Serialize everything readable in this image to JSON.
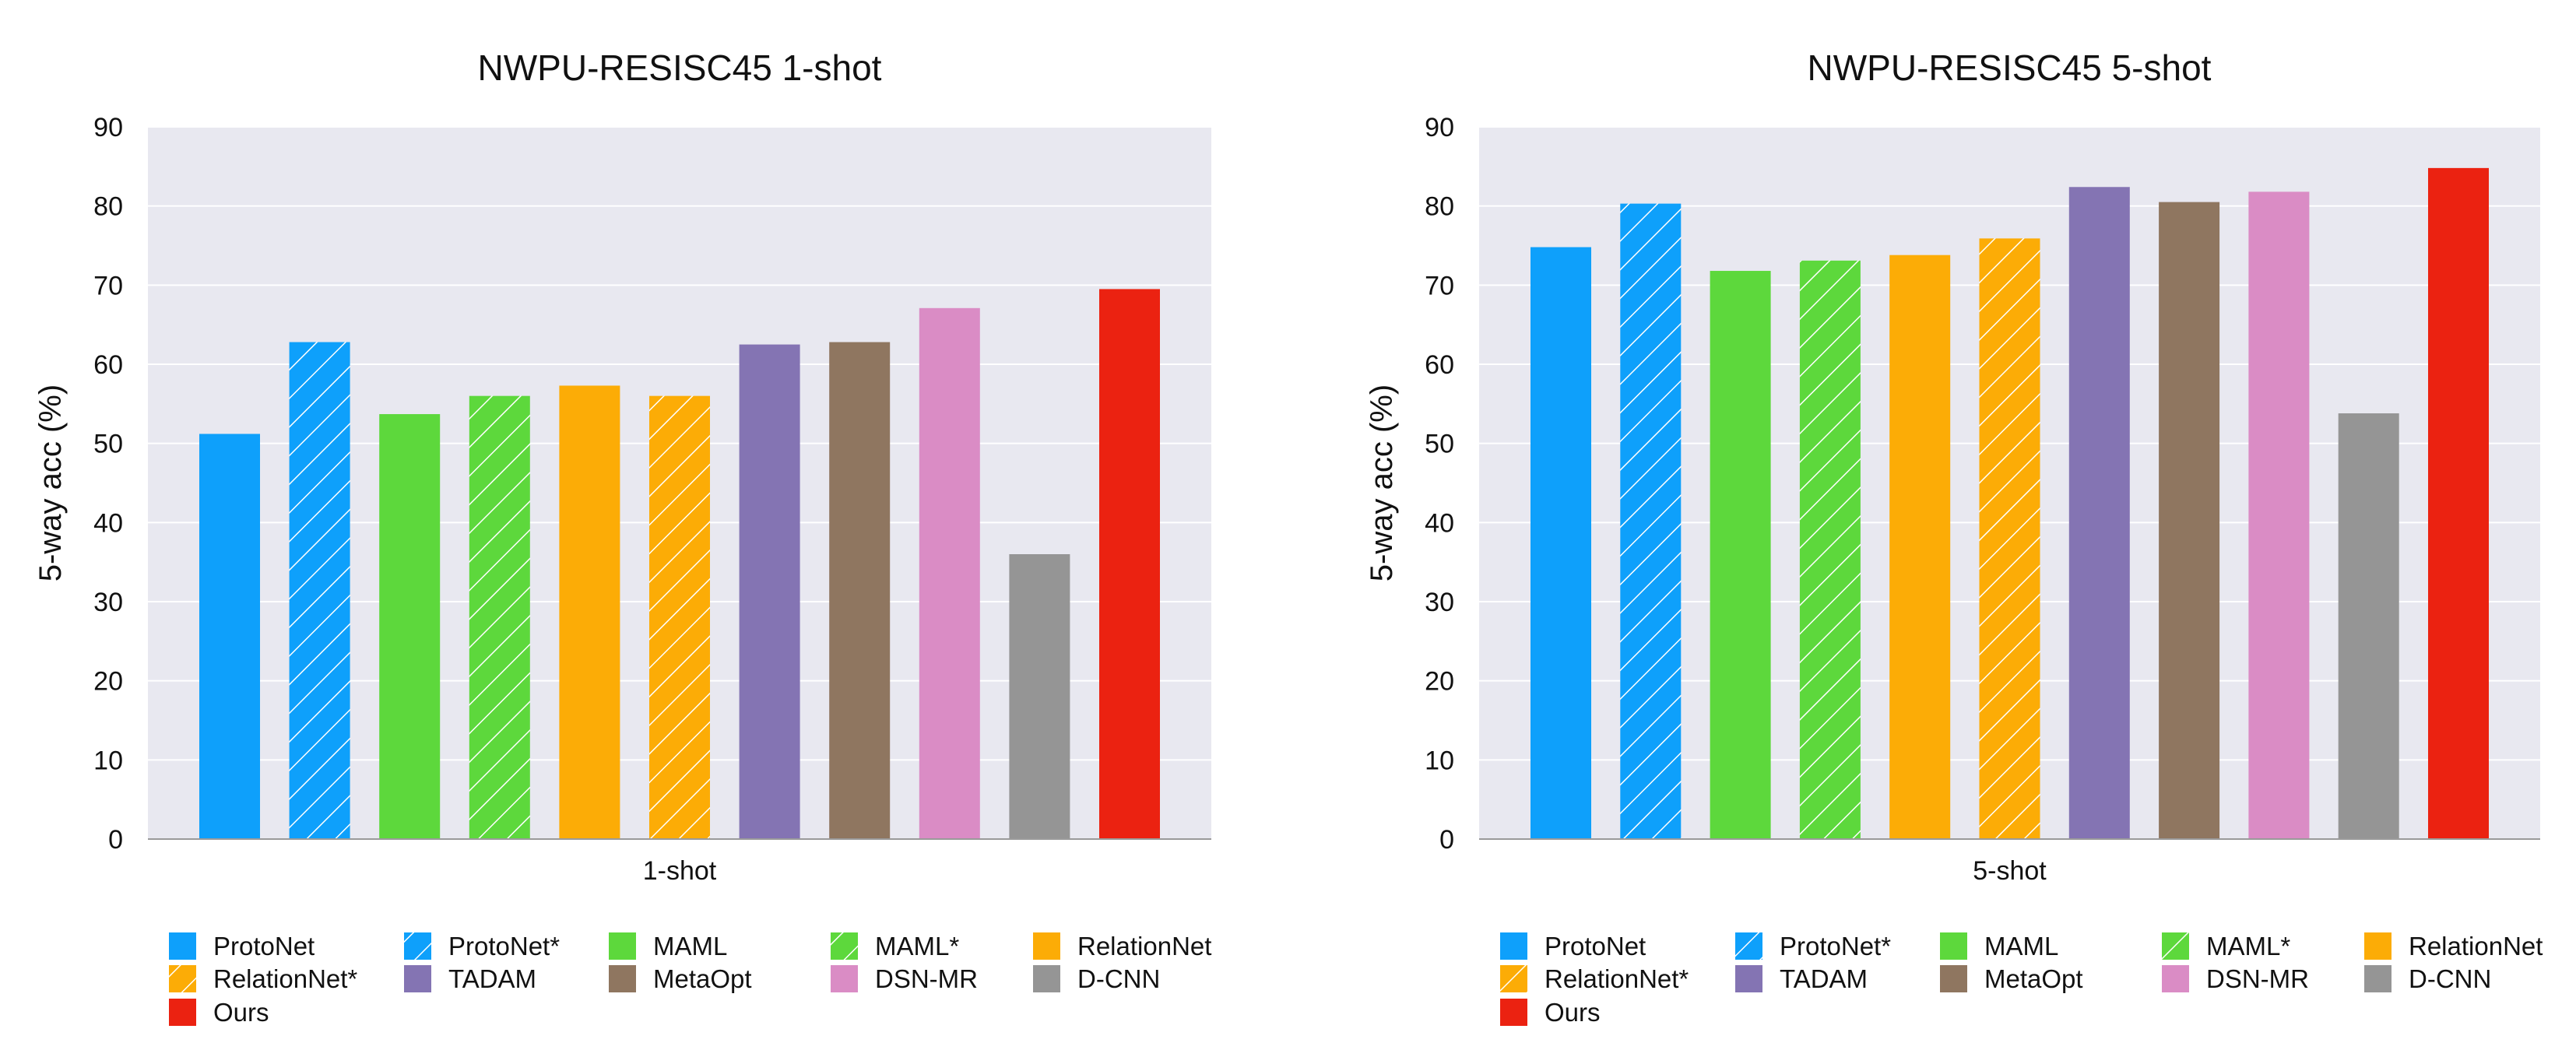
{
  "colors": {
    "ProtoNet": "#0ea0fb",
    "ProtoNet*": "#0ea0fb",
    "MAML": "#5dd83c",
    "MAML*": "#5dd83c",
    "RelationNet": "#fcac06",
    "RelationNet*": "#fcac06",
    "TADAM": "#8474b3",
    "MetaOpt": "#8f7660",
    "DSN-MR": "#da8cc5",
    "D-CNN": "#959595",
    "Ours": "#eb2211",
    "plot_background": "#e8e8f0",
    "gridline": "#ffffff"
  },
  "hatched_series": [
    "ProtoNet*",
    "MAML*",
    "RelationNet*"
  ],
  "chart_data": [
    {
      "type": "bar",
      "title": "NWPU-RESISC45 1-shot",
      "xlabel": "1-shot",
      "ylabel": "5-way acc (%)",
      "ylim": [
        0,
        90
      ],
      "yticks": [
        "0",
        "10",
        "20",
        "30",
        "40",
        "50",
        "60",
        "70",
        "80",
        "90"
      ],
      "grid": true,
      "legend_placement": "bottom",
      "series": [
        {
          "name": "ProtoNet",
          "value": 51.2
        },
        {
          "name": "ProtoNet*",
          "value": 62.8
        },
        {
          "name": "MAML",
          "value": 53.7
        },
        {
          "name": "MAML*",
          "value": 56.0
        },
        {
          "name": "RelationNet",
          "value": 57.3
        },
        {
          "name": "RelationNet*",
          "value": 56.0
        },
        {
          "name": "TADAM",
          "value": 62.5
        },
        {
          "name": "MetaOpt",
          "value": 62.8
        },
        {
          "name": "DSN-MR",
          "value": 67.1
        },
        {
          "name": "D-CNN",
          "value": 36.0
        },
        {
          "name": "Ours",
          "value": 69.5
        }
      ]
    },
    {
      "type": "bar",
      "title": "NWPU-RESISC45 5-shot",
      "xlabel": "5-shot",
      "ylabel": "5-way acc (%)",
      "ylim": [
        0,
        90
      ],
      "yticks": [
        "0",
        "10",
        "20",
        "30",
        "40",
        "50",
        "60",
        "70",
        "80",
        "90"
      ],
      "grid": true,
      "legend_placement": "bottom",
      "series": [
        {
          "name": "ProtoNet",
          "value": 74.8
        },
        {
          "name": "ProtoNet*",
          "value": 80.3
        },
        {
          "name": "MAML",
          "value": 71.8
        },
        {
          "name": "MAML*",
          "value": 73.1
        },
        {
          "name": "RelationNet",
          "value": 73.8
        },
        {
          "name": "RelationNet*",
          "value": 75.9
        },
        {
          "name": "TADAM",
          "value": 82.4
        },
        {
          "name": "MetaOpt",
          "value": 80.5
        },
        {
          "name": "DSN-MR",
          "value": 81.8
        },
        {
          "name": "D-CNN",
          "value": 53.8
        },
        {
          "name": "Ours",
          "value": 84.8
        }
      ]
    }
  ],
  "legend_items": [
    "ProtoNet",
    "ProtoNet*",
    "MAML",
    "MAML*",
    "RelationNet",
    "RelationNet*",
    "TADAM",
    "MetaOpt",
    "DSN-MR",
    "D-CNN",
    "Ours"
  ]
}
